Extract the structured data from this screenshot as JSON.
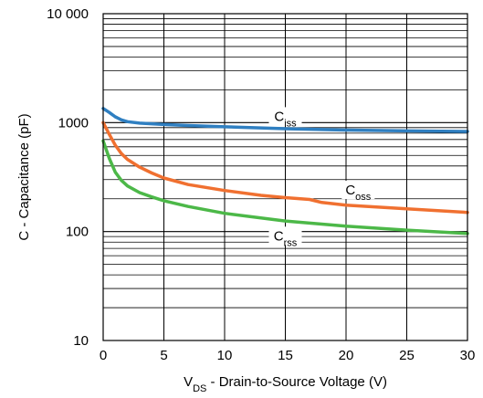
{
  "chart_data": {
    "type": "line",
    "title": "",
    "xlabel": {
      "main": "V",
      "sub": "DS",
      "rest": " - Drain-to-Source Voltage (V)"
    },
    "ylabel": "C - Capacitance (pF)",
    "xlim": [
      0,
      30
    ],
    "ylim": [
      10,
      10000
    ],
    "yscale": "log",
    "grid": true,
    "legend": "none",
    "x_ticks": [
      0,
      5,
      10,
      15,
      20,
      25,
      30
    ],
    "x_tick_labels": [
      "0",
      "5",
      "10",
      "15",
      "20",
      "25",
      "30"
    ],
    "y_ticks": [
      10,
      100,
      1000,
      10000
    ],
    "y_tick_labels": [
      "10",
      "100",
      "1000",
      "10 000"
    ],
    "series": [
      {
        "name": "Ciss",
        "label_main": "C",
        "label_sub": "iss",
        "color": "#2f7fc1",
        "x": [
          0,
          0.5,
          1,
          1.5,
          2,
          3,
          4,
          5,
          7,
          10,
          15,
          20,
          25,
          30
        ],
        "y": [
          1350,
          1240,
          1130,
          1060,
          1020,
          990,
          975,
          960,
          940,
          915,
          880,
          855,
          840,
          830
        ]
      },
      {
        "name": "Coss",
        "label_main": "C",
        "label_sub": "oss",
        "color": "#f07030",
        "x": [
          0,
          0.5,
          1,
          1.5,
          2,
          3,
          4,
          5,
          7,
          10,
          13,
          15,
          17,
          18,
          20,
          25,
          30
        ],
        "y": [
          1000,
          780,
          620,
          520,
          460,
          390,
          345,
          310,
          270,
          238,
          215,
          205,
          197,
          185,
          175,
          162,
          150
        ]
      },
      {
        "name": "Crss",
        "label_main": "C",
        "label_sub": "rss",
        "color": "#4cb848",
        "x": [
          0,
          0.5,
          1,
          1.5,
          2,
          3,
          4,
          5,
          7,
          10,
          15,
          20,
          25,
          30
        ],
        "y": [
          680,
          470,
          350,
          295,
          262,
          228,
          208,
          192,
          170,
          147,
          125,
          112,
          103,
          96
        ]
      }
    ]
  }
}
